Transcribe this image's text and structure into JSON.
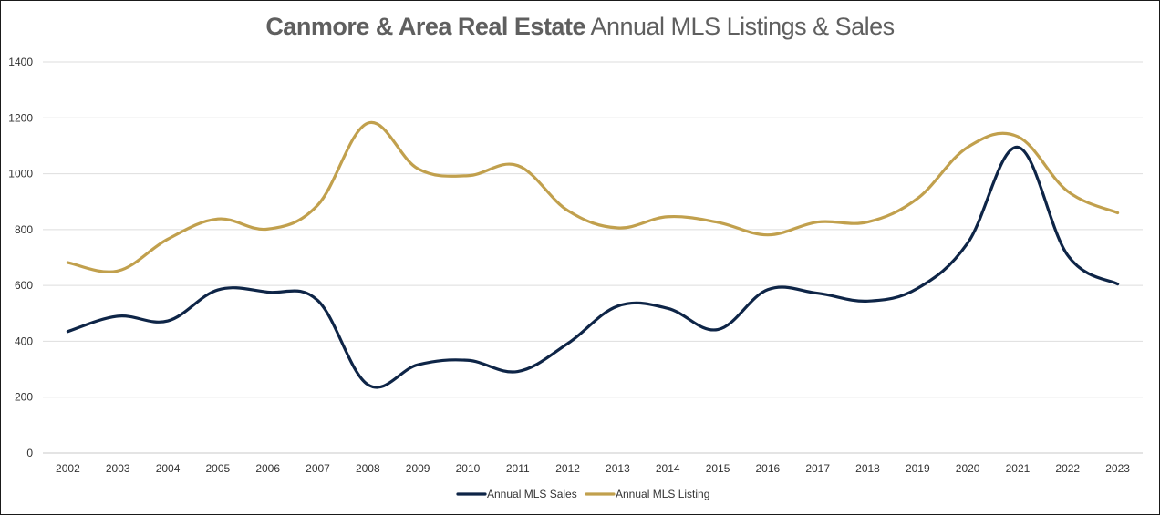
{
  "chart_data": {
    "type": "line",
    "title": {
      "bold": "Canmore & Area Real Estate",
      "regular": "Annual MLS Listings & Sales"
    },
    "xlabel": "",
    "ylabel": "",
    "ylim": [
      0,
      1400
    ],
    "yticks": [
      0,
      200,
      400,
      600,
      800,
      1000,
      1200,
      1400
    ],
    "grid": true,
    "legend_position": "bottom-center",
    "x": [
      "2002",
      "2003",
      "2004",
      "2005",
      "2006",
      "2007",
      "2008",
      "2009",
      "2010",
      "2011",
      "2012",
      "2013",
      "2014",
      "2015",
      "2016",
      "2017",
      "2018",
      "2019",
      "2020",
      "2021",
      "2022",
      "2023"
    ],
    "series": [
      {
        "name": "Annual MLS Sales",
        "color": "#0e2547",
        "values": [
          435,
          490,
          473,
          584,
          576,
          546,
          245,
          316,
          332,
          292,
          392,
          526,
          518,
          442,
          585,
          572,
          544,
          590,
          752,
          1095,
          708,
          605
        ]
      },
      {
        "name": "Annual MLS Listing",
        "color": "#c1a04d",
        "values": [
          682,
          652,
          766,
          838,
          802,
          888,
          1181,
          1018,
          993,
          1029,
          868,
          806,
          846,
          826,
          781,
          827,
          827,
          912,
          1095,
          1133,
          937,
          860
        ]
      }
    ]
  }
}
